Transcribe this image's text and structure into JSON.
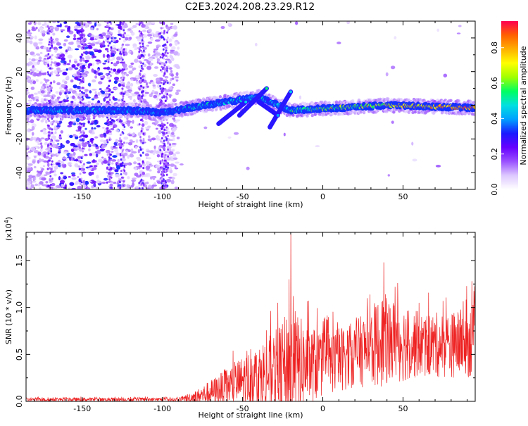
{
  "page": {
    "title": "C2E3.2024.208.23.29.R12"
  },
  "chart_data": [
    {
      "type": "heatmap",
      "title": "C2E3.2024.208.23.29.R12",
      "xlabel": "Height of straight line (km)",
      "ylabel": "Frequency (Hz)",
      "xlim": [
        -185,
        95
      ],
      "ylim": [
        -50,
        50
      ],
      "xticks": [
        -150,
        -100,
        -50,
        0,
        50
      ],
      "yticks": [
        -40,
        -20,
        0,
        20,
        40
      ],
      "colorbar": {
        "label": "Normalized spectral amplitude",
        "range": [
          0,
          0.95
        ],
        "ticks": [
          0.0,
          0.2,
          0.4,
          0.6,
          0.8
        ],
        "colors": [
          "#ffffff",
          "#ddc8ff",
          "#9a50ff",
          "#6600ff",
          "#1a1aff",
          "#00a0ff",
          "#00e0e0",
          "#00ff60",
          "#a0ff00",
          "#ffff00",
          "#ffb000",
          "#ff6000",
          "#ff0050"
        ]
      },
      "ridge": [
        {
          "x": -185,
          "y": -3
        },
        {
          "x": -120,
          "y": -3
        },
        {
          "x": -100,
          "y": -4.5
        },
        {
          "x": -80,
          "y": -1
        },
        {
          "x": -60,
          "y": 2
        },
        {
          "x": -40,
          "y": 5
        },
        {
          "x": -20,
          "y": -3
        },
        {
          "x": 0,
          "y": -2
        },
        {
          "x": 40,
          "y": 0
        },
        {
          "x": 95,
          "y": -1.5
        }
      ],
      "streaks": [
        {
          "x": [
            -65,
            -48
          ],
          "y": [
            -11,
            2
          ]
        },
        {
          "x": [
            -52,
            -35
          ],
          "y": [
            -6,
            10
          ]
        },
        {
          "x": [
            -33,
            -20
          ],
          "y": [
            -13,
            8
          ]
        },
        {
          "x": [
            -40,
            -28
          ],
          "y": [
            2,
            -6
          ]
        }
      ]
    },
    {
      "type": "line",
      "xlabel": "Height of straight line (km)",
      "ylabel": "SNR (10 * v/v)",
      "yscale_label": "(x10",
      "yscale_exp": "4",
      "yscale_close": ")",
      "xlim": [
        -185,
        95
      ],
      "ylim": [
        0,
        1.8
      ],
      "xticks": [
        -150,
        -100,
        -50,
        0,
        50
      ],
      "yticks": [
        0.0,
        0.5,
        1.0,
        1.5
      ],
      "color": "#ee2222",
      "envelope": [
        {
          "x": -185,
          "base": 0.02,
          "amp": 0.02
        },
        {
          "x": -90,
          "base": 0.02,
          "amp": 0.02
        },
        {
          "x": -78,
          "base": 0.05,
          "amp": 0.08
        },
        {
          "x": -60,
          "base": 0.15,
          "amp": 0.2
        },
        {
          "x": -45,
          "base": 0.25,
          "amp": 0.3
        },
        {
          "x": -30,
          "base": 0.3,
          "amp": 0.45
        },
        {
          "x": -20,
          "base": 0.35,
          "amp": 0.65
        },
        {
          "x": -10,
          "base": 0.38,
          "amp": 0.45
        },
        {
          "x": 0,
          "base": 0.4,
          "amp": 0.35
        },
        {
          "x": 20,
          "base": 0.5,
          "amp": 0.35
        },
        {
          "x": 38,
          "base": 0.65,
          "amp": 0.5
        },
        {
          "x": 60,
          "base": 0.6,
          "amp": 0.35
        },
        {
          "x": 80,
          "base": 0.6,
          "amp": 0.35
        },
        {
          "x": 95,
          "base": 0.65,
          "amp": 0.4
        }
      ],
      "peaks": [
        {
          "x": -20,
          "y": 1.78
        },
        {
          "x": -21,
          "y": 1.3
        },
        {
          "x": -28,
          "y": 1.05
        },
        {
          "x": 38,
          "y": 1.48
        },
        {
          "x": 45,
          "y": 1.22
        },
        {
          "x": 93,
          "y": 1.28
        },
        {
          "x": 60,
          "y": 1.05
        }
      ]
    }
  ]
}
